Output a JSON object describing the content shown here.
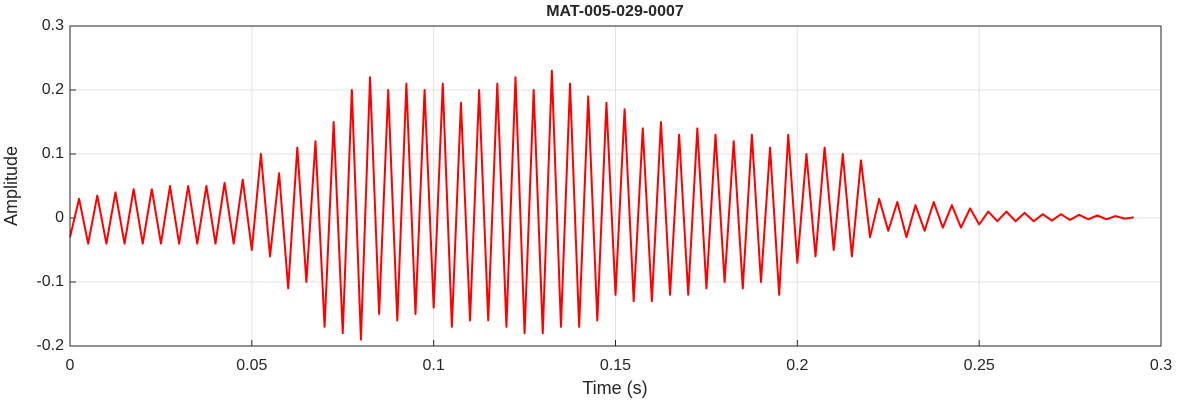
{
  "chart_data": {
    "type": "line",
    "title": "MAT-005-029-0007",
    "xlabel": "Time (s)",
    "ylabel": "Amplitude",
    "xlim": [
      0,
      0.3
    ],
    "xticks": [
      0,
      0.05,
      0.1,
      0.15,
      0.2,
      0.25,
      0.3
    ],
    "ylim": [
      -0.2,
      0.3
    ],
    "yticks": [
      -0.2,
      -0.1,
      0,
      0.1,
      0.2,
      0.3
    ],
    "grid": true,
    "series": [
      {
        "color": "#ff0000",
        "x": [
          0,
          0.0025,
          0.005,
          0.0075,
          0.01,
          0.0125,
          0.015,
          0.0175,
          0.02,
          0.0225,
          0.025,
          0.0275,
          0.03,
          0.0325,
          0.035,
          0.0375,
          0.04,
          0.0425,
          0.045,
          0.0475,
          0.05,
          0.0525,
          0.055,
          0.0575,
          0.06,
          0.0625,
          0.065,
          0.0675,
          0.07,
          0.0725,
          0.075,
          0.0775,
          0.08,
          0.0825,
          0.085,
          0.0875,
          0.09,
          0.0925,
          0.095,
          0.0975,
          0.1,
          0.1025,
          0.105,
          0.1075,
          0.11,
          0.1125,
          0.115,
          0.1175,
          0.12,
          0.1225,
          0.125,
          0.1275,
          0.13,
          0.1325,
          0.135,
          0.1375,
          0.14,
          0.1425,
          0.145,
          0.1475,
          0.15,
          0.1525,
          0.155,
          0.1575,
          0.16,
          0.1625,
          0.165,
          0.1675,
          0.17,
          0.1725,
          0.175,
          0.1775,
          0.18,
          0.1825,
          0.185,
          0.1875,
          0.19,
          0.1925,
          0.195,
          0.1975,
          0.2,
          0.2025,
          0.205,
          0.2075,
          0.21,
          0.2125,
          0.215,
          0.2175,
          0.22,
          0.2225,
          0.225,
          0.2275,
          0.23,
          0.2325,
          0.235,
          0.2375,
          0.24,
          0.2425,
          0.245,
          0.2475,
          0.25,
          0.2525,
          0.255,
          0.2575,
          0.26,
          0.2625,
          0.265,
          0.2675,
          0.27,
          0.2725,
          0.275,
          0.2775,
          0.28,
          0.2825,
          0.285,
          0.2875,
          0.29,
          0.2925
        ],
        "values": [
          -0.03,
          0.03,
          -0.04,
          0.035,
          -0.04,
          0.04,
          -0.04,
          0.045,
          -0.04,
          0.045,
          -0.04,
          0.05,
          -0.04,
          0.05,
          -0.04,
          0.05,
          -0.04,
          0.055,
          -0.04,
          0.06,
          -0.05,
          0.1,
          -0.06,
          0.07,
          -0.11,
          0.11,
          -0.1,
          0.12,
          -0.17,
          0.15,
          -0.18,
          0.2,
          -0.19,
          0.22,
          -0.15,
          0.2,
          -0.16,
          0.21,
          -0.15,
          0.2,
          -0.14,
          0.21,
          -0.17,
          0.18,
          -0.16,
          0.2,
          -0.16,
          0.21,
          -0.17,
          0.22,
          -0.18,
          0.2,
          -0.18,
          0.23,
          -0.17,
          0.21,
          -0.17,
          0.19,
          -0.16,
          0.18,
          -0.12,
          0.17,
          -0.13,
          0.14,
          -0.13,
          0.15,
          -0.12,
          0.13,
          -0.12,
          0.14,
          -0.11,
          0.13,
          -0.1,
          0.12,
          -0.11,
          0.13,
          -0.1,
          0.11,
          -0.12,
          0.13,
          -0.07,
          0.1,
          -0.06,
          0.11,
          -0.05,
          0.1,
          -0.06,
          0.09,
          -0.03,
          0.03,
          -0.02,
          0.025,
          -0.03,
          0.02,
          -0.02,
          0.025,
          -0.015,
          0.02,
          -0.015,
          0.015,
          -0.01,
          0.01,
          -0.005,
          0.01,
          -0.005,
          0.008,
          -0.005,
          0.006,
          -0.004,
          0.006,
          -0.003,
          0.005,
          -0.002,
          0.004,
          -0.002,
          0.003,
          -0.001,
          0.001
        ]
      }
    ]
  }
}
